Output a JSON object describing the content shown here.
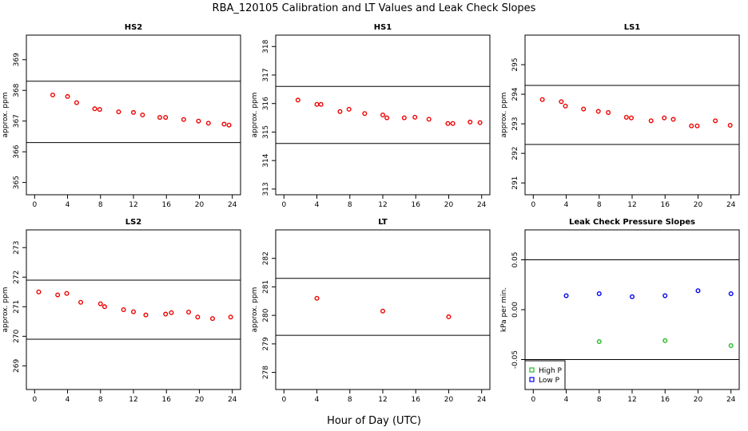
{
  "figure": {
    "title": "RBA_120105  Calibration and LT Values and Leak Check Slopes",
    "xlabel": "Hour of Day (UTC)"
  },
  "colors": {
    "red": "#ee0000",
    "green": "#22bb22",
    "blue": "#0000ee",
    "line": "#000000"
  },
  "chart_data": [
    {
      "type": "scatter",
      "title": "HS2",
      "ylabel": "approx. ppm",
      "xlim": [
        -1,
        25
      ],
      "ylim": [
        364.6,
        369.8
      ],
      "xticks": [
        0,
        4,
        8,
        12,
        16,
        20,
        24
      ],
      "yticks": [
        365,
        366,
        367,
        368,
        369
      ],
      "hlines": [
        368.3,
        366.3
      ],
      "series": [
        {
          "color": "#ee0000",
          "marker": "circle",
          "points": [
            [
              2.2,
              367.85
            ],
            [
              4.0,
              367.8
            ],
            [
              5.1,
              367.6
            ],
            [
              7.3,
              367.4
            ],
            [
              7.9,
              367.38
            ],
            [
              10.2,
              367.3
            ],
            [
              12.0,
              367.28
            ],
            [
              13.1,
              367.2
            ],
            [
              15.2,
              367.12
            ],
            [
              15.9,
              367.12
            ],
            [
              18.1,
              367.05
            ],
            [
              19.9,
              367.0
            ],
            [
              21.1,
              366.93
            ],
            [
              23.0,
              366.9
            ],
            [
              23.6,
              366.87
            ]
          ]
        }
      ]
    },
    {
      "type": "scatter",
      "title": "HS1",
      "ylabel": "approx. ppm",
      "xlim": [
        -1,
        25
      ],
      "ylim": [
        312.8,
        318.4
      ],
      "xticks": [
        0,
        4,
        8,
        12,
        16,
        20,
        24
      ],
      "yticks": [
        313,
        314,
        315,
        316,
        317,
        318
      ],
      "hlines": [
        316.6,
        314.6
      ],
      "series": [
        {
          "color": "#ee0000",
          "marker": "circle",
          "points": [
            [
              1.7,
              316.12
            ],
            [
              4.0,
              315.97
            ],
            [
              4.5,
              315.97
            ],
            [
              6.8,
              315.72
            ],
            [
              7.9,
              315.8
            ],
            [
              9.8,
              315.65
            ],
            [
              12.0,
              315.6
            ],
            [
              12.5,
              315.5
            ],
            [
              14.6,
              315.5
            ],
            [
              15.9,
              315.52
            ],
            [
              17.6,
              315.45
            ],
            [
              19.9,
              315.3
            ],
            [
              20.5,
              315.3
            ],
            [
              22.6,
              315.35
            ],
            [
              23.8,
              315.33
            ]
          ]
        }
      ]
    },
    {
      "type": "scatter",
      "title": "LS1",
      "ylabel": "approx. ppm",
      "xlim": [
        -1,
        25
      ],
      "ylim": [
        290.6,
        296.0
      ],
      "xticks": [
        0,
        4,
        8,
        12,
        16,
        20,
        24
      ],
      "yticks": [
        291,
        292,
        293,
        294,
        295
      ],
      "hlines": [
        294.3,
        292.3
      ],
      "series": [
        {
          "color": "#ee0000",
          "marker": "circle",
          "points": [
            [
              1.1,
              293.82
            ],
            [
              3.4,
              293.75
            ],
            [
              3.9,
              293.6
            ],
            [
              6.1,
              293.5
            ],
            [
              7.9,
              293.42
            ],
            [
              9.1,
              293.38
            ],
            [
              11.3,
              293.22
            ],
            [
              11.9,
              293.2
            ],
            [
              14.3,
              293.1
            ],
            [
              15.9,
              293.2
            ],
            [
              17.0,
              293.15
            ],
            [
              19.2,
              292.93
            ],
            [
              19.9,
              292.93
            ],
            [
              22.1,
              293.1
            ],
            [
              23.9,
              292.95
            ]
          ]
        }
      ]
    },
    {
      "type": "scatter",
      "title": "LS2",
      "ylabel": "approx. ppm",
      "xlim": [
        -1,
        25
      ],
      "ylim": [
        268.2,
        273.6
      ],
      "xticks": [
        0,
        4,
        8,
        12,
        16,
        20,
        24
      ],
      "yticks": [
        269,
        270,
        271,
        272,
        273
      ],
      "hlines": [
        271.9,
        269.9
      ],
      "series": [
        {
          "color": "#ee0000",
          "marker": "circle",
          "points": [
            [
              0.5,
              271.5
            ],
            [
              2.8,
              271.4
            ],
            [
              3.9,
              271.45
            ],
            [
              5.6,
              271.15
            ],
            [
              8.0,
              271.1
            ],
            [
              8.5,
              271.0
            ],
            [
              10.8,
              270.9
            ],
            [
              12.0,
              270.83
            ],
            [
              13.5,
              270.72
            ],
            [
              15.9,
              270.75
            ],
            [
              16.6,
              270.8
            ],
            [
              18.7,
              270.82
            ],
            [
              19.8,
              270.65
            ],
            [
              21.6,
              270.6
            ],
            [
              23.8,
              270.65
            ]
          ]
        }
      ]
    },
    {
      "type": "scatter",
      "title": "LT",
      "ylabel": "approx. ppm",
      "xlim": [
        -1,
        25
      ],
      "ylim": [
        277.4,
        283.0
      ],
      "xticks": [
        0,
        4,
        8,
        12,
        16,
        20,
        24
      ],
      "yticks": [
        278,
        279,
        280,
        281,
        282
      ],
      "hlines": [
        281.3,
        279.3
      ],
      "series": [
        {
          "color": "#ee0000",
          "marker": "circle",
          "points": [
            [
              4.0,
              280.6
            ],
            [
              12.0,
              280.15
            ],
            [
              20.0,
              279.95
            ]
          ]
        }
      ]
    },
    {
      "type": "scatter",
      "title": "Leak Check Pressure Slopes",
      "ylabel": "kPa per min.",
      "xlim": [
        -1,
        25
      ],
      "ylim": [
        -0.08,
        0.08
      ],
      "xticks": [
        0,
        4,
        8,
        12,
        16,
        20,
        24
      ],
      "yticks": [
        -0.05,
        0.0,
        0.05
      ],
      "ytick_labels": [
        "-0.05",
        "0.00",
        "0.05"
      ],
      "hlines": [
        0.05,
        -0.05
      ],
      "legend": {
        "position": "bottom-left",
        "entries": [
          {
            "label": "High P",
            "color": "#22bb22"
          },
          {
            "label": "Low P",
            "color": "#0000ee"
          }
        ]
      },
      "series": [
        {
          "name": "High P",
          "color": "#22bb22",
          "marker": "circle",
          "points": [
            [
              8.0,
              -0.032
            ],
            [
              16.0,
              -0.031
            ],
            [
              24.0,
              -0.036
            ]
          ]
        },
        {
          "name": "Low P",
          "color": "#0000ee",
          "marker": "circle",
          "points": [
            [
              4.0,
              0.014
            ],
            [
              8.0,
              0.016
            ],
            [
              12.0,
              0.013
            ],
            [
              16.0,
              0.014
            ],
            [
              20.0,
              0.019
            ],
            [
              24.0,
              0.016
            ]
          ]
        }
      ]
    }
  ]
}
